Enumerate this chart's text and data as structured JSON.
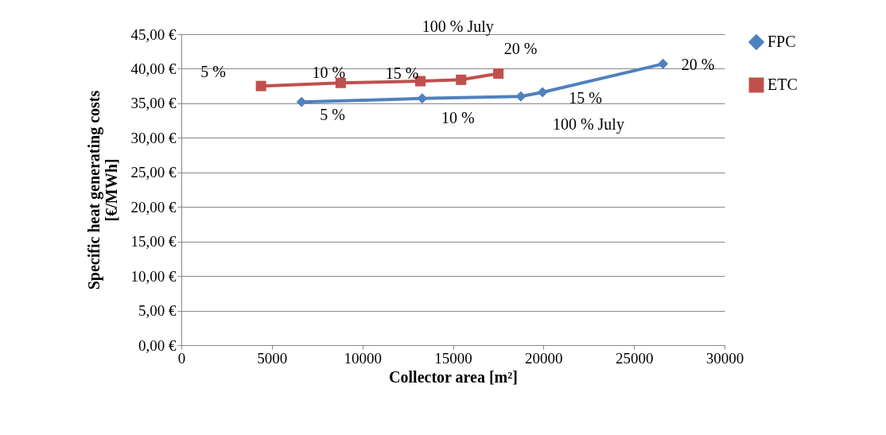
{
  "chart_data": {
    "type": "line",
    "xlabel": "Collector area [m²]",
    "ylabel": "Specific heat generating costs [€/MWh]",
    "series": [
      {
        "name": "FPC",
        "color": "#4f81bd",
        "marker": "diamond",
        "x": [
          6640,
          13300,
          18750,
          19950,
          26600
        ],
        "values": [
          35.2,
          35.7,
          36.0,
          36.6,
          40.7
        ]
      },
      {
        "name": "ETC",
        "color": "#c0504d",
        "marker": "square",
        "x": [
          4400,
          8800,
          13200,
          15450,
          17510
        ],
        "values": [
          37.5,
          37.95,
          38.2,
          38.4,
          39.3
        ]
      }
    ],
    "xlim": [
      0,
      30000
    ],
    "xticks": [
      0,
      5000,
      10000,
      15000,
      20000,
      25000,
      30000
    ],
    "ylim": [
      0,
      45
    ],
    "yticks": [
      {
        "value": 0,
        "label": "0,00 €"
      },
      {
        "value": 5,
        "label": "5,00 €"
      },
      {
        "value": 10,
        "label": "10,00 €"
      },
      {
        "value": 15,
        "label": "15,00 €"
      },
      {
        "value": 20,
        "label": "20,00 €"
      },
      {
        "value": 25,
        "label": "25,00 €"
      },
      {
        "value": 30,
        "label": "30,00 €"
      },
      {
        "value": 35,
        "label": "35,00 €"
      },
      {
        "value": 40,
        "label": "40,00 €"
      },
      {
        "value": 45,
        "label": "45,00 €"
      }
    ],
    "grid": "y",
    "legend": "right",
    "annotations": [
      {
        "text": "5 %",
        "x": 4400,
        "y": 37.5
      },
      {
        "text": "10 %",
        "x": 8800,
        "y": 37.95
      },
      {
        "text": "15 %",
        "x": 13200,
        "y": 38.2
      },
      {
        "text": "100 % July",
        "x": 15450,
        "y": 38.4
      },
      {
        "text": "20 %",
        "x": 17510,
        "y": 39.3
      },
      {
        "text": "5 %",
        "x": 6640,
        "y": 35.2
      },
      {
        "text": "10 %",
        "x": 13300,
        "y": 35.7
      },
      {
        "text": "100 % July",
        "x": 18750,
        "y": 36.0
      },
      {
        "text": "15 %",
        "x": 19950,
        "y": 36.6
      },
      {
        "text": "20 %",
        "x": 26600,
        "y": 40.7
      }
    ]
  }
}
